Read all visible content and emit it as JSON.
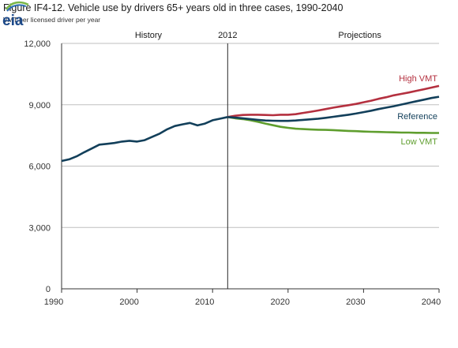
{
  "title": "Figure IF4-12. Vehicle use by drivers 65+ years old in three cases, 1990-2040",
  "subtitle": "VMT per licensed driver per year",
  "logo_text": "eia",
  "colors": {
    "high": "#b4303f",
    "reference": "#123f5a",
    "low": "#5f9e2e",
    "grid": "#bfbfbf",
    "axis": "#333333"
  },
  "annotations": {
    "history": "History",
    "projections": "Projections",
    "divider_year_label": "2012"
  },
  "chart_data": {
    "type": "line",
    "title": "Figure IF4-12. Vehicle use by drivers 65+ years old in three cases, 1990-2040",
    "xlabel": "",
    "ylabel": "VMT per licensed driver per year",
    "xlim": [
      1990,
      2040
    ],
    "ylim": [
      0,
      12000
    ],
    "x_ticks": [
      1990,
      2000,
      2010,
      2020,
      2030,
      2040
    ],
    "y_ticks": [
      0,
      3000,
      6000,
      9000,
      12000
    ],
    "x_tick_labels": [
      "1990",
      "2000",
      "2010",
      "2020",
      "2030",
      "2040"
    ],
    "y_tick_labels": [
      "0",
      "3,000",
      "6,000",
      "9,000",
      "12,000"
    ],
    "grid": "horizontal",
    "divider_x": 2012,
    "history": {
      "x": [
        1990,
        1991,
        1992,
        1993,
        1994,
        1995,
        1996,
        1997,
        1998,
        1999,
        2000,
        2001,
        2002,
        2003,
        2004,
        2005,
        2006,
        2007,
        2008,
        2009,
        2010,
        2011,
        2012
      ],
      "values": [
        6250,
        6330,
        6480,
        6680,
        6860,
        7050,
        7090,
        7130,
        7200,
        7240,
        7200,
        7270,
        7430,
        7590,
        7800,
        7960,
        8040,
        8110,
        7990,
        8080,
        8240,
        8320,
        8400
      ]
    },
    "series": [
      {
        "name": "High VMT",
        "color": "#b4303f",
        "x": [
          2012,
          2013,
          2014,
          2015,
          2016,
          2017,
          2018,
          2019,
          2020,
          2021,
          2022,
          2023,
          2024,
          2025,
          2026,
          2027,
          2028,
          2029,
          2030,
          2031,
          2032,
          2033,
          2034,
          2035,
          2036,
          2037,
          2038,
          2039,
          2040
        ],
        "values": [
          8400,
          8460,
          8500,
          8510,
          8510,
          8500,
          8490,
          8510,
          8510,
          8540,
          8600,
          8660,
          8720,
          8790,
          8860,
          8920,
          8980,
          9040,
          9120,
          9200,
          9290,
          9370,
          9460,
          9530,
          9600,
          9680,
          9760,
          9840,
          9920
        ]
      },
      {
        "name": "Reference",
        "color": "#123f5a",
        "x": [
          2012,
          2013,
          2014,
          2015,
          2016,
          2017,
          2018,
          2019,
          2020,
          2021,
          2022,
          2023,
          2024,
          2025,
          2026,
          2027,
          2028,
          2029,
          2030,
          2031,
          2032,
          2033,
          2034,
          2035,
          2036,
          2037,
          2038,
          2039,
          2040
        ],
        "values": [
          8400,
          8370,
          8340,
          8300,
          8260,
          8230,
          8220,
          8210,
          8210,
          8230,
          8260,
          8290,
          8320,
          8360,
          8410,
          8460,
          8510,
          8570,
          8640,
          8710,
          8790,
          8860,
          8930,
          9010,
          9090,
          9170,
          9250,
          9330,
          9390
        ]
      },
      {
        "name": "Low VMT",
        "color": "#5f9e2e",
        "x": [
          2012,
          2013,
          2014,
          2015,
          2016,
          2017,
          2018,
          2019,
          2020,
          2021,
          2022,
          2023,
          2024,
          2025,
          2026,
          2027,
          2028,
          2029,
          2030,
          2031,
          2032,
          2033,
          2034,
          2035,
          2036,
          2037,
          2038,
          2039,
          2040
        ],
        "values": [
          8400,
          8340,
          8300,
          8240,
          8170,
          8080,
          8000,
          7920,
          7870,
          7830,
          7810,
          7790,
          7780,
          7770,
          7760,
          7740,
          7720,
          7710,
          7690,
          7680,
          7670,
          7660,
          7650,
          7640,
          7640,
          7630,
          7630,
          7620,
          7620
        ]
      }
    ]
  }
}
